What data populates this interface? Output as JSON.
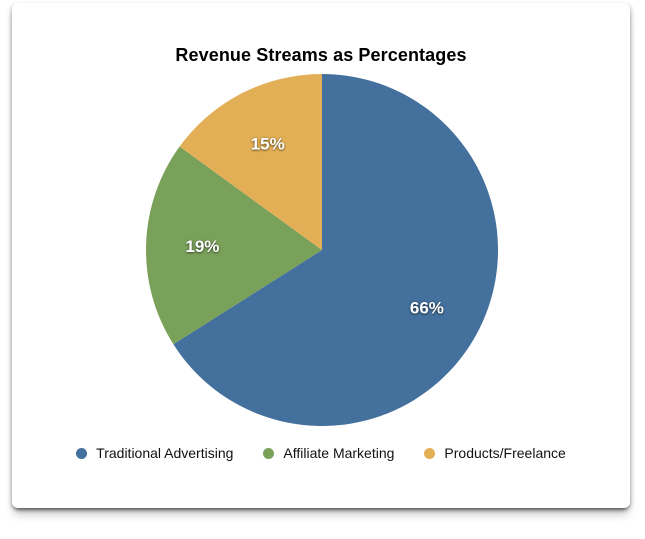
{
  "chart_data": {
    "type": "pie",
    "title": "Revenue Streams as Percentages",
    "slices": [
      {
        "label": "Traditional Advertising",
        "value": 66,
        "display": "66%",
        "color": "#44709D"
      },
      {
        "label": "Affiliate Marketing",
        "value": 19,
        "display": "19%",
        "color": "#7AA15A"
      },
      {
        "label": "Products/Freelance",
        "value": 15,
        "display": "15%",
        "color": "#E3AF56"
      }
    ],
    "start_angle_deg": 0,
    "direction": "clockwise",
    "legend_position": "bottom",
    "slice_label_color": "#ffffff",
    "title_color": "#000000",
    "background_color": "#ffffff"
  }
}
